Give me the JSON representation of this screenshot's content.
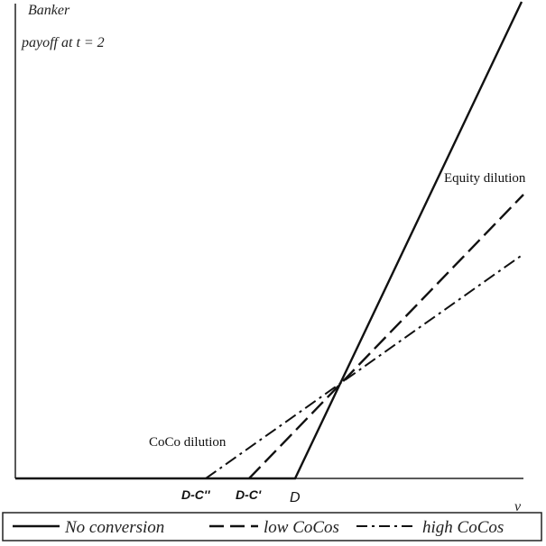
{
  "chart_data": {
    "type": "line",
    "ylabel_lines": [
      "Banker",
      "payoff at t = 2"
    ],
    "xlabel": "v",
    "x_ticks": [
      "D-C''",
      "D-C'",
      "D"
    ],
    "series": [
      {
        "name": "No conversion",
        "style": "solid"
      },
      {
        "name": "low CoCos",
        "style": "dashed"
      },
      {
        "name": "high CoCos",
        "style": "dashdot"
      }
    ],
    "annotations": [
      "Equity dilution",
      "CoCo dilution"
    ],
    "grid": false,
    "legend_placement": "bottom"
  },
  "colors": {
    "line": "#111111",
    "axis": "#222222",
    "background": "#ffffff"
  }
}
